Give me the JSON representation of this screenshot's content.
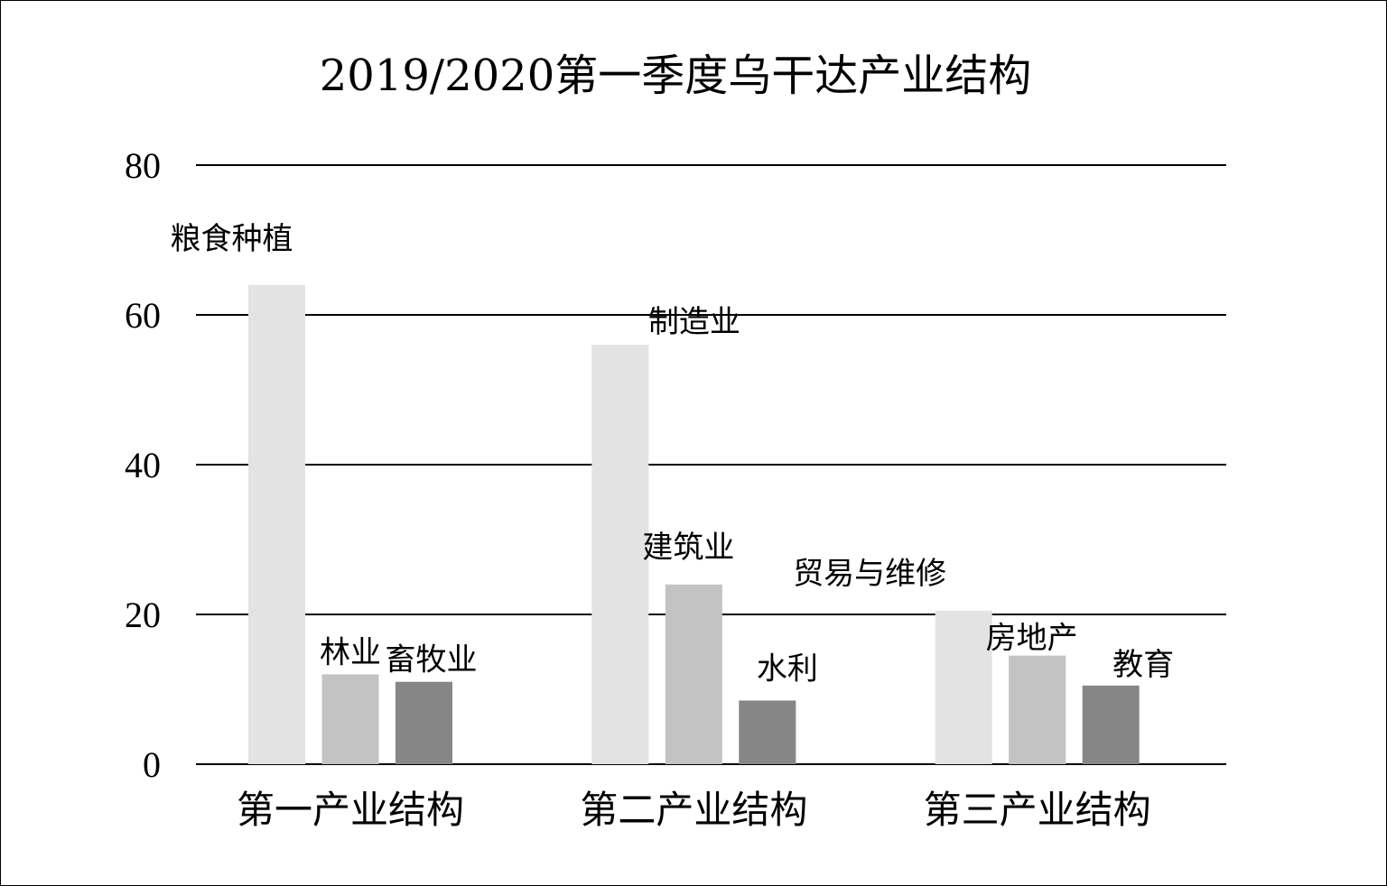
{
  "chart_data": {
    "type": "bar",
    "title": "2019/2020第一季度乌干达产业结构",
    "xlabel": "",
    "ylabel": "",
    "ylim": [
      0,
      80
    ],
    "yticks": [
      0,
      20,
      40,
      60,
      80
    ],
    "grid": true,
    "legend": "none",
    "colors": [
      "#e3e3e3",
      "#c3c3c3",
      "#868686"
    ],
    "categories": [
      "第一产业结构",
      "第二产业结构",
      "第三产业结构"
    ],
    "groups": [
      {
        "category": "第一产业结构",
        "bars": [
          {
            "label": "粮食种植",
            "value": 64
          },
          {
            "label": "林业",
            "value": 12
          },
          {
            "label": "畜牧业",
            "value": 11
          }
        ]
      },
      {
        "category": "第二产业结构",
        "bars": [
          {
            "label": "制造业",
            "value": 56
          },
          {
            "label": "建筑业",
            "value": 24
          },
          {
            "label": "水利",
            "value": 8.5
          }
        ]
      },
      {
        "category": "第三产业结构",
        "bars": [
          {
            "label": "贸易与维修",
            "value": 20.5
          },
          {
            "label": "房地产",
            "value": 14.5
          },
          {
            "label": "教育",
            "value": 10.5
          }
        ]
      }
    ]
  }
}
